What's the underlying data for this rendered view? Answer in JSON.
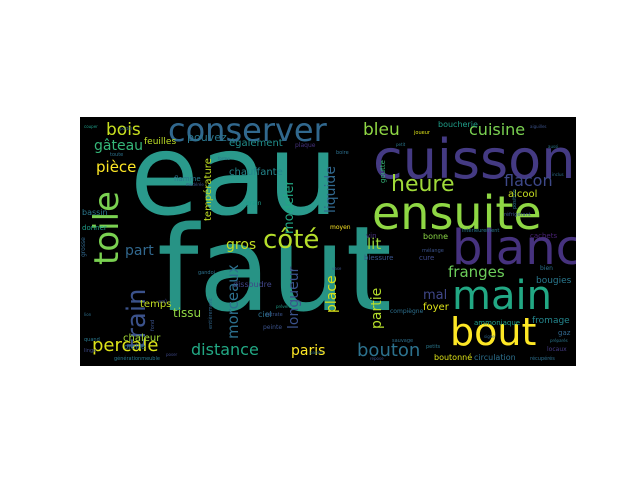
{
  "background_color": "#000000",
  "words": [
    {
      "text": "eau",
      "color": "#2a9a8c"
    },
    {
      "text": "faut",
      "color": "#279385"
    },
    {
      "text": "cuisson",
      "color": "#443a83"
    },
    {
      "text": "ensuite",
      "color": "#8fd744"
    },
    {
      "text": "blanc",
      "color": "#46327e"
    },
    {
      "text": "main",
      "color": "#22a884"
    },
    {
      "text": "conserver",
      "color": "#31688e"
    },
    {
      "text": "toile",
      "color": "#7ad151"
    },
    {
      "text": "bout",
      "color": "#fde725"
    },
    {
      "text": "heure",
      "color": "#a0da39"
    },
    {
      "text": "côté",
      "color": "#b5de2b"
    },
    {
      "text": "train",
      "color": "#3b528b"
    },
    {
      "text": "percale",
      "color": "#dde318"
    },
    {
      "text": "distance",
      "color": "#22a884"
    },
    {
      "text": "bouton",
      "color": "#2c728e"
    },
    {
      "text": "bois",
      "color": "#c8e020"
    },
    {
      "text": "bleu",
      "color": "#8fd744"
    },
    {
      "text": "cuisine",
      "color": "#7ad151"
    },
    {
      "text": "flacon",
      "color": "#3e4989"
    },
    {
      "text": "franges",
      "color": "#6ccd5a"
    },
    {
      "text": "gâteau",
      "color": "#35b779"
    },
    {
      "text": "pièce",
      "color": "#fde725"
    },
    {
      "text": "morceaux",
      "color": "#2d708e"
    },
    {
      "text": "modeler",
      "color": "#22a884"
    },
    {
      "text": "longueur",
      "color": "#3b528b"
    },
    {
      "text": "liquide",
      "color": "#31688e"
    },
    {
      "text": "place",
      "color": "#d8e219"
    },
    {
      "text": "partie",
      "color": "#b5de2b"
    },
    {
      "text": "paris",
      "color": "#fde725"
    },
    {
      "text": "lit",
      "color": "#9bd93c"
    },
    {
      "text": "gros",
      "color": "#c2df23"
    },
    {
      "text": "part",
      "color": "#31688e"
    },
    {
      "text": "mal",
      "color": "#3f4788"
    },
    {
      "text": "tissu",
      "color": "#90d743"
    },
    {
      "text": "pouvez",
      "color": "#2a788e"
    },
    {
      "text": "température",
      "color": "#c2df23"
    },
    {
      "text": "également",
      "color": "#218f8d"
    },
    {
      "text": "chauffante",
      "color": "#24878e"
    },
    {
      "text": "chaleur",
      "color": "#a5db36"
    },
    {
      "text": "temps",
      "color": "#c2df23"
    },
    {
      "text": "feuilles",
      "color": "#bddf26"
    },
    {
      "text": "alcool",
      "color": "#c8e020"
    },
    {
      "text": "foyer",
      "color": "#dde318"
    },
    {
      "text": "bonne",
      "color": "#8bd646"
    },
    {
      "text": "bougies",
      "color": "#2a788e"
    },
    {
      "text": "fromage",
      "color": "#24878e"
    },
    {
      "text": "boutonné",
      "color": "#dde318"
    },
    {
      "text": "circulation",
      "color": "#2d708e"
    },
    {
      "text": "bassin",
      "color": "#2a788e"
    },
    {
      "text": "boucherie",
      "color": "#1f9e89"
    },
    {
      "text": "ciel",
      "color": "#2d708e"
    },
    {
      "text": "dissoudre",
      "color": "#404688"
    },
    {
      "text": "blessure",
      "color": "#3a548c"
    },
    {
      "text": "flamme",
      "color": "#2a788e"
    },
    {
      "text": "donner",
      "color": "#1f9e89"
    },
    {
      "text": "cachets",
      "color": "#482173"
    },
    {
      "text": "goutte",
      "color": "#35b779"
    },
    {
      "text": "grain",
      "color": "#1f9a8a"
    },
    {
      "text": "plaque",
      "color": "#46337e"
    },
    {
      "text": "moyen",
      "color": "#fde725"
    },
    {
      "text": "gaz",
      "color": "#31688e"
    },
    {
      "text": "oreille",
      "color": "#2d708e"
    },
    {
      "text": "ammoniaque",
      "color": "#1f9e89"
    },
    {
      "text": "peinte",
      "color": "#3b528b"
    },
    {
      "text": "vin",
      "color": "#46327e"
    },
    {
      "text": "cure",
      "color": "#3e4989"
    },
    {
      "text": "nitrate",
      "color": "#3a548c"
    },
    {
      "text": "générationmeuble",
      "color": "#2a788e"
    },
    {
      "text": "compiègne",
      "color": "#2d708e"
    },
    {
      "text": "bien",
      "color": "#2c728e"
    },
    {
      "text": "sauvage",
      "color": "#2d708e"
    },
    {
      "text": "quand",
      "color": "#2a788e"
    },
    {
      "text": "entièrement",
      "color": "#31688e"
    },
    {
      "text": "gandoi",
      "color": "#2c728e"
    },
    {
      "text": "intérieurement",
      "color": "#2a788e"
    },
    {
      "text": "prévenir",
      "color": "#1f9e89"
    },
    {
      "text": "mélange",
      "color": "#3b528b"
    },
    {
      "text": "réfrigérant",
      "color": "#3b528b"
    },
    {
      "text": "position",
      "color": "#2a788e"
    },
    {
      "text": "boire",
      "color": "#2d708e"
    },
    {
      "text": "toute",
      "color": "#2c728e"
    },
    {
      "text": "joueur",
      "color": "#dde318"
    },
    {
      "text": "petits",
      "color": "#2a788e"
    },
    {
      "text": "aoû",
      "color": "#3e4989"
    },
    {
      "text": "grosse",
      "color": "#31688e"
    },
    {
      "text": "fond",
      "color": "#3b528b"
    },
    {
      "text": "linge",
      "color": "#3e4989"
    },
    {
      "text": "récupérés",
      "color": "#2d708e"
    },
    {
      "text": "locaux",
      "color": "#443a83"
    },
    {
      "text": "couper",
      "color": "#1f9e89"
    },
    {
      "text": "porter",
      "color": "#31688e"
    },
    {
      "text": "petit",
      "color": "#2a788e"
    },
    {
      "text": "inclus",
      "color": "#2d708e"
    },
    {
      "text": "aiguilles",
      "color": "#3b528b"
    },
    {
      "text": "modérée",
      "color": "#3a548c"
    },
    {
      "text": "forme",
      "color": "#2d708e"
    },
    {
      "text": "passer",
      "color": "#2c728e"
    },
    {
      "text": "vase",
      "color": "#3b528b"
    },
    {
      "text": "signe",
      "color": "#31688e"
    },
    {
      "text": "lion",
      "color": "#2d708e"
    },
    {
      "text": "poser",
      "color": "#3e4989"
    },
    {
      "text": "repose",
      "color": "#3b528b"
    },
    {
      "text": "préparés",
      "color": "#2a788e"
    },
    {
      "text": "aussi",
      "color": "#2a788e"
    }
  ]
}
